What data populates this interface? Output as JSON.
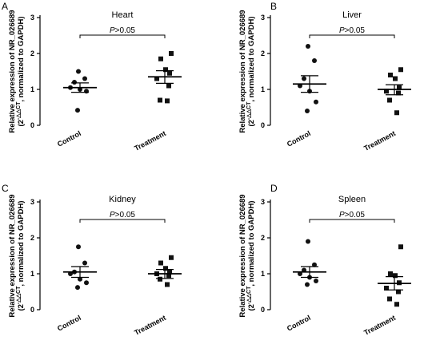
{
  "figure": {
    "y_label_line1": "Relative expression of NR_026689",
    "y_label_line2_prefix": "(2",
    "y_label_superscript": "-△△CT",
    "y_label_line2_suffix": ", normalized to GAPDH)"
  },
  "chart_data": [
    {
      "panel": "A",
      "title": "Heart",
      "type": "scatter",
      "categories": [
        "Control",
        "Treatment"
      ],
      "ylim": [
        0,
        3
      ],
      "yticks": [
        0,
        1,
        2,
        3
      ],
      "annotation": "P>0.05",
      "series": [
        {
          "category": "Control",
          "marker": "circle",
          "mean": 1.05,
          "sem_low": 0.92,
          "sem_high": 1.18,
          "values": [
            1.5,
            1.3,
            1.2,
            1.05,
            1.0,
            0.95,
            0.42
          ]
        },
        {
          "category": "Treatment",
          "marker": "square",
          "mean": 1.35,
          "sem_low": 1.17,
          "sem_high": 1.52,
          "values": [
            2.0,
            1.85,
            1.55,
            1.45,
            1.3,
            1.1,
            0.7,
            0.68
          ]
        }
      ]
    },
    {
      "panel": "B",
      "title": "Liver",
      "type": "scatter",
      "categories": [
        "Control",
        "Treatment"
      ],
      "ylim": [
        0,
        3
      ],
      "yticks": [
        0,
        1,
        2,
        3
      ],
      "annotation": "P>0.05",
      "series": [
        {
          "category": "Control",
          "marker": "circle",
          "mean": 1.15,
          "sem_low": 0.92,
          "sem_high": 1.38,
          "values": [
            2.2,
            1.8,
            1.3,
            1.1,
            0.95,
            0.65,
            0.4
          ]
        },
        {
          "category": "Treatment",
          "marker": "square",
          "mean": 1.0,
          "sem_low": 0.85,
          "sem_high": 1.13,
          "values": [
            1.55,
            1.4,
            1.3,
            1.05,
            0.95,
            0.9,
            0.7,
            0.35
          ]
        }
      ]
    },
    {
      "panel": "C",
      "title": "Kidney",
      "type": "scatter",
      "categories": [
        "Control",
        "Treatment"
      ],
      "ylim": [
        0,
        3
      ],
      "yticks": [
        0,
        1,
        2,
        3
      ],
      "annotation": "P>0.05",
      "series": [
        {
          "category": "Control",
          "marker": "circle",
          "mean": 1.05,
          "sem_low": 0.9,
          "sem_high": 1.2,
          "values": [
            1.75,
            1.3,
            1.05,
            1.0,
            0.85,
            0.75,
            0.62
          ]
        },
        {
          "category": "Treatment",
          "marker": "square",
          "mean": 1.0,
          "sem_low": 0.87,
          "sem_high": 1.12,
          "values": [
            1.45,
            1.3,
            1.15,
            1.05,
            1.0,
            0.95,
            0.85,
            0.7
          ]
        }
      ]
    },
    {
      "panel": "D",
      "title": "Spleen",
      "type": "scatter",
      "categories": [
        "Control",
        "Treatment"
      ],
      "ylim": [
        0,
        3
      ],
      "yticks": [
        0,
        1,
        2,
        3
      ],
      "annotation": "P>0.05",
      "series": [
        {
          "category": "Control",
          "marker": "circle",
          "mean": 1.05,
          "sem_low": 0.9,
          "sem_high": 1.2,
          "values": [
            1.9,
            1.25,
            1.1,
            1.0,
            0.9,
            0.8,
            0.7
          ]
        },
        {
          "category": "Treatment",
          "marker": "square",
          "mean": 0.73,
          "sem_low": 0.55,
          "sem_high": 0.92,
          "values": [
            1.75,
            1.0,
            0.95,
            0.75,
            0.6,
            0.5,
            0.3,
            0.15
          ]
        }
      ]
    }
  ]
}
